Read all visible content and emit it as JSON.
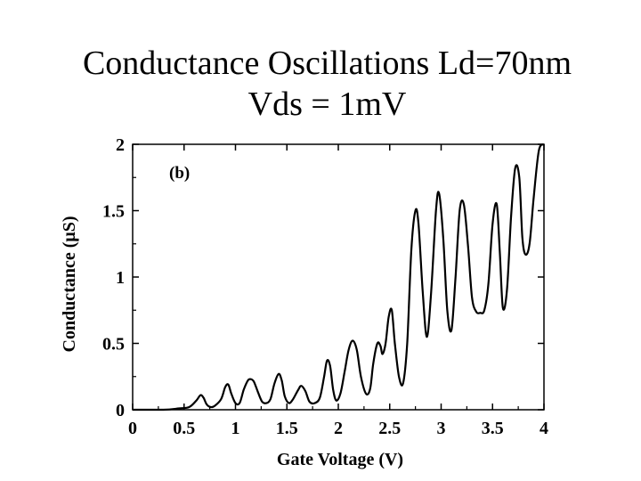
{
  "slide": {
    "title_line1": "Conductance Oscillations Ld=70nm",
    "title_line2": "Vds = 1mV"
  },
  "chart_data": {
    "type": "line",
    "panel_label": "(b)",
    "xlabel": "Gate Voltage (V)",
    "ylabel": "Conductance  (μS)",
    "xlim": [
      0,
      4
    ],
    "ylim": [
      0,
      2
    ],
    "xticks": [
      "0",
      "0.5",
      "1",
      "1.5",
      "2",
      "2.5",
      "3",
      "3.5",
      "4"
    ],
    "yticks": [
      "0",
      "0.5",
      "1",
      "1.5",
      "2"
    ],
    "grid": false,
    "line_color": "#000000",
    "series": [
      {
        "x": [
          0.0,
          0.3,
          0.45,
          0.55,
          0.62,
          0.66,
          0.69,
          0.72,
          0.76,
          0.8,
          0.86,
          0.9,
          0.93,
          0.96,
          1.0,
          1.04,
          1.08,
          1.12,
          1.15,
          1.18,
          1.22,
          1.26,
          1.3,
          1.34,
          1.38,
          1.42,
          1.45,
          1.48,
          1.52,
          1.56,
          1.61,
          1.64,
          1.68,
          1.72,
          1.77,
          1.82,
          1.86,
          1.89,
          1.92,
          1.95,
          1.98,
          2.02,
          2.06,
          2.1,
          2.14,
          2.18,
          2.22,
          2.27,
          2.31,
          2.34,
          2.38,
          2.41,
          2.43,
          2.46,
          2.49,
          2.52,
          2.55,
          2.59,
          2.63,
          2.67,
          2.71,
          2.75,
          2.78,
          2.82,
          2.86,
          2.9,
          2.95,
          2.98,
          3.02,
          3.06,
          3.1,
          3.14,
          3.18,
          3.22,
          3.26,
          3.3,
          3.34,
          3.38,
          3.42,
          3.46,
          3.5,
          3.54,
          3.57,
          3.6,
          3.64,
          3.68,
          3.72,
          3.76,
          3.79,
          3.82,
          3.86,
          3.9,
          3.95,
          4.0
        ],
        "y": [
          0.0,
          0.0,
          0.01,
          0.02,
          0.07,
          0.11,
          0.09,
          0.04,
          0.02,
          0.03,
          0.08,
          0.17,
          0.19,
          0.12,
          0.05,
          0.05,
          0.15,
          0.22,
          0.23,
          0.21,
          0.13,
          0.06,
          0.05,
          0.08,
          0.2,
          0.27,
          0.22,
          0.1,
          0.05,
          0.08,
          0.15,
          0.18,
          0.14,
          0.06,
          0.05,
          0.09,
          0.24,
          0.37,
          0.33,
          0.15,
          0.07,
          0.12,
          0.28,
          0.45,
          0.52,
          0.45,
          0.25,
          0.12,
          0.16,
          0.35,
          0.5,
          0.48,
          0.42,
          0.5,
          0.7,
          0.75,
          0.5,
          0.25,
          0.2,
          0.5,
          1.2,
          1.5,
          1.4,
          0.9,
          0.55,
          0.85,
          1.5,
          1.63,
          1.3,
          0.75,
          0.6,
          1.0,
          1.5,
          1.55,
          1.25,
          0.85,
          0.74,
          0.73,
          0.75,
          0.95,
          1.4,
          1.55,
          1.2,
          0.77,
          0.9,
          1.45,
          1.82,
          1.75,
          1.3,
          1.17,
          1.25,
          1.6,
          1.95,
          2.0
        ]
      }
    ]
  }
}
